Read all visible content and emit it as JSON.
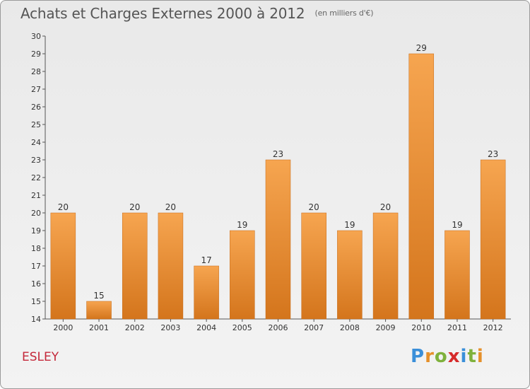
{
  "title": "Achats et Charges Externes 2000 à 2012",
  "subtitle": "(en milliers d'€)",
  "commune": "ESLEY",
  "logo": {
    "text": "Proxiti",
    "letters": [
      "P",
      "r",
      "o",
      "x",
      "i",
      "t",
      "i"
    ],
    "colors": [
      "#3a8fd9",
      "#e5902b",
      "#7fb13c",
      "#d62b2b",
      "#3a8fd9",
      "#7fb13c",
      "#e5902b"
    ]
  },
  "colors": {
    "bar_top": "#f6a550",
    "bar_bottom": "#d4751c",
    "bar_edge": "#c56a18",
    "axis": "#555555",
    "text": "#333333"
  },
  "chart_data": {
    "type": "bar",
    "categories": [
      "2000",
      "2001",
      "2002",
      "2003",
      "2004",
      "2005",
      "2006",
      "2007",
      "2008",
      "2009",
      "2010",
      "2011",
      "2012"
    ],
    "values": [
      20,
      15,
      20,
      20,
      17,
      19,
      23,
      20,
      19,
      20,
      29,
      19,
      23
    ],
    "data_labels": [
      "20",
      "15",
      "20",
      "20",
      "17",
      "19",
      "23",
      "20",
      "19",
      "20",
      "29",
      "19",
      "23"
    ],
    "ylim": [
      14,
      30
    ],
    "yticks": [
      14,
      15,
      16,
      17,
      18,
      19,
      20,
      21,
      22,
      23,
      24,
      25,
      26,
      27,
      28,
      29,
      30
    ],
    "grid": false,
    "legend": "none",
    "xlabel": "",
    "ylabel": ""
  }
}
